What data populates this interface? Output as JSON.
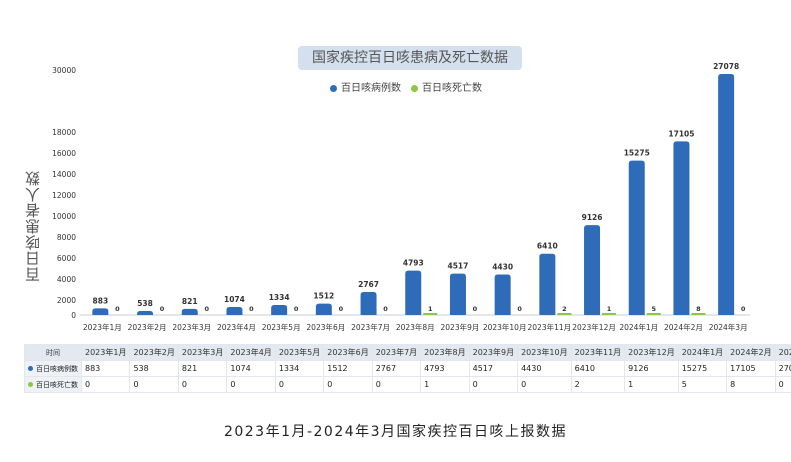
{
  "chart_data": {
    "type": "bar",
    "title": "国家疾控百日咳患病及死亡数据",
    "ylabel": "百日咳患者人数",
    "yticks": [
      0,
      2000,
      4000,
      6000,
      8000,
      10000,
      12000,
      14000,
      16000,
      18000,
      30000
    ],
    "ylim": [
      0,
      30000
    ],
    "axis_break": [
      18000,
      30000
    ],
    "legend_position": "top",
    "categories": [
      "2023年1月",
      "2023年2月",
      "2023年3月",
      "2023年4月",
      "2023年5月",
      "2023年6月",
      "2023年7月",
      "2023年8月",
      "2023年9月",
      "2023年10月",
      "2023年11月",
      "2023年12月",
      "2024年1月",
      "2024年2月",
      "2024年3月"
    ],
    "series": [
      {
        "name": "百日咳病例数",
        "color": "#2e6bb8",
        "values": [
          883,
          538,
          821,
          1074,
          1334,
          1512,
          2767,
          4793,
          4517,
          4430,
          6410,
          9126,
          15275,
          17105,
          27078
        ]
      },
      {
        "name": "百日咳死亡数",
        "color": "#8dc63f",
        "values": [
          0,
          0,
          0,
          0,
          0,
          0,
          0,
          1,
          0,
          0,
          2,
          1,
          5,
          8,
          0
        ]
      }
    ]
  },
  "table": {
    "header_label": "时间"
  },
  "caption": "2023年1月-2024年3月国家疾控百日咳上报数据"
}
